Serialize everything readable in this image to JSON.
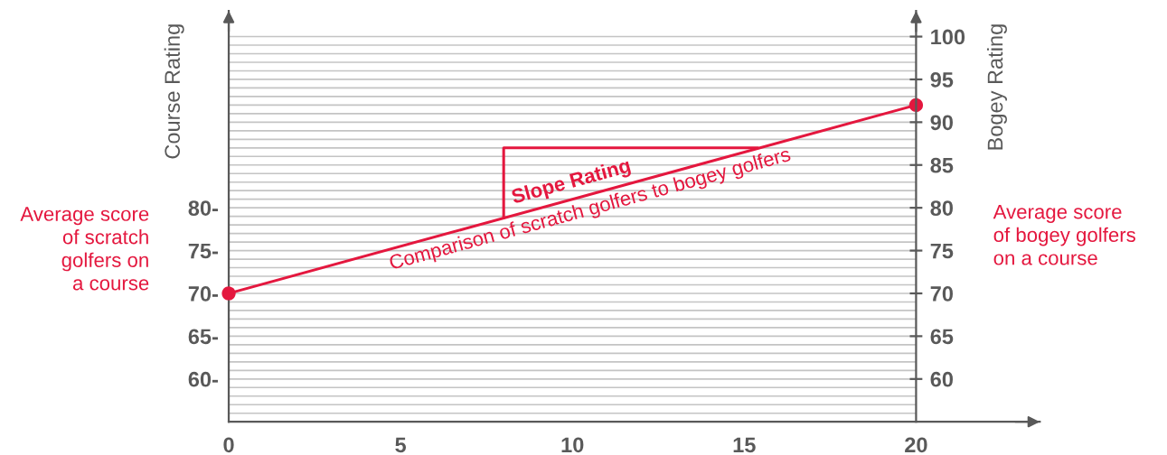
{
  "chart_data": {
    "type": "line",
    "xlabel": null,
    "ylabel": "Course Rating",
    "y2label": "Bogey Rating",
    "series": [
      {
        "color": "#e4173e",
        "x": [
          0,
          20
        ],
        "values": [
          70,
          92
        ],
        "marker": "circle"
      },
      {
        "color": "#e4173e",
        "x": [
          8,
          8,
          15.4
        ],
        "values": [
          78.8,
          87,
          87
        ],
        "marker": "none"
      }
    ],
    "xlim": [
      0,
      23.6
    ],
    "xticks": [
      0,
      5,
      10,
      15,
      20
    ],
    "ylim": [
      55,
      103
    ],
    "yticks": [
      {
        "value": 56,
        "label": null
      },
      {
        "value": 57,
        "label": null
      },
      {
        "value": 58,
        "label": null
      },
      {
        "value": 59,
        "label": null
      },
      {
        "value": 60,
        "label": "60-"
      },
      {
        "value": 61,
        "label": null
      },
      {
        "value": 62,
        "label": null
      },
      {
        "value": 63,
        "label": null
      },
      {
        "value": 64,
        "label": null
      },
      {
        "value": 65,
        "label": "65-"
      },
      {
        "value": 66,
        "label": null
      },
      {
        "value": 67,
        "label": null
      },
      {
        "value": 68,
        "label": null
      },
      {
        "value": 69,
        "label": null
      },
      {
        "value": 70,
        "label": "70-"
      },
      {
        "value": 71,
        "label": null
      },
      {
        "value": 72,
        "label": null
      },
      {
        "value": 73,
        "label": null
      },
      {
        "value": 74,
        "label": null
      },
      {
        "value": 75,
        "label": "75-"
      },
      {
        "value": 76,
        "label": null
      },
      {
        "value": 77,
        "label": null
      },
      {
        "value": 78,
        "label": null
      },
      {
        "value": 79,
        "label": null
      },
      {
        "value": 80,
        "label": "80-"
      },
      {
        "value": 81,
        "label": null
      },
      {
        "value": 82,
        "label": null
      },
      {
        "value": 83,
        "label": null
      },
      {
        "value": 84,
        "label": null
      },
      {
        "value": 85,
        "label": null
      },
      {
        "value": 86,
        "label": null
      },
      {
        "value": 87,
        "label": null
      },
      {
        "value": 88,
        "label": null
      },
      {
        "value": 89,
        "label": null
      },
      {
        "value": 90,
        "label": null
      },
      {
        "value": 91,
        "label": null
      },
      {
        "value": 92,
        "label": null
      },
      {
        "value": 93,
        "label": null
      },
      {
        "value": 94,
        "label": null
      },
      {
        "value": 95,
        "label": null
      },
      {
        "value": 96,
        "label": null
      },
      {
        "value": 97,
        "label": null
      },
      {
        "value": 98,
        "label": null
      },
      {
        "value": 99,
        "label": null
      },
      {
        "value": 100,
        "label": null
      }
    ],
    "y2lim": [
      55,
      103
    ],
    "y2ticks": [
      60,
      65,
      70,
      75,
      80,
      85,
      90,
      95,
      100
    ],
    "grid": "y",
    "annotations": [
      "Slope Rating",
      "Comparison of scratch golfers to bogey golfers",
      "Average score\nof scratch\ngolfers on\na course",
      "Average score\nof bogey golfers\non a course"
    ]
  }
}
